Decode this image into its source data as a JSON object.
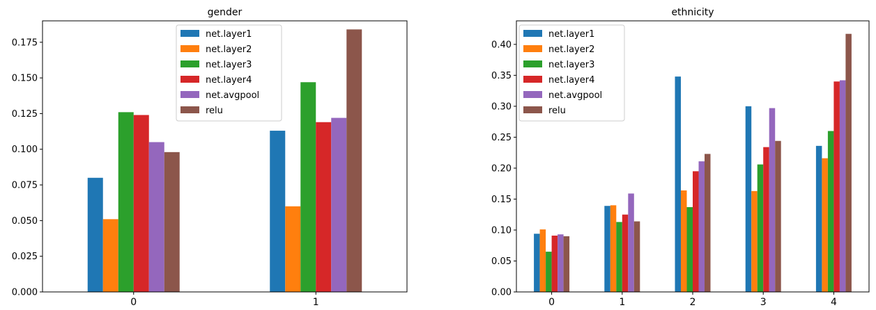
{
  "chart_data": [
    {
      "type": "bar",
      "title": "gender",
      "categories": [
        "0",
        "1"
      ],
      "series": [
        {
          "name": "net.layer1",
          "color": "#1f77b4",
          "values": [
            0.08,
            0.113
          ]
        },
        {
          "name": "net.layer2",
          "color": "#ff7f0e",
          "values": [
            0.051,
            0.06
          ]
        },
        {
          "name": "net.layer3",
          "color": "#2ca02c",
          "values": [
            0.126,
            0.147
          ]
        },
        {
          "name": "net.layer4",
          "color": "#d62728",
          "values": [
            0.124,
            0.119
          ]
        },
        {
          "name": "net.avgpool",
          "color": "#9467bd",
          "values": [
            0.105,
            0.122
          ]
        },
        {
          "name": "relu",
          "color": "#8c564b",
          "values": [
            0.098,
            0.184
          ]
        }
      ],
      "ylim": [
        0,
        0.19
      ],
      "yticks": [
        "0.000",
        "0.025",
        "0.050",
        "0.075",
        "0.100",
        "0.125",
        "0.150",
        "0.175"
      ],
      "ytick_values": [
        0,
        0.025,
        0.05,
        0.075,
        0.1,
        0.125,
        0.15,
        0.175
      ],
      "legend": "top-center",
      "grid": false
    },
    {
      "type": "bar",
      "title": "ethnicity",
      "categories": [
        "0",
        "1",
        "2",
        "3",
        "4"
      ],
      "series": [
        {
          "name": "net.layer1",
          "color": "#1f77b4",
          "values": [
            0.094,
            0.139,
            0.348,
            0.3,
            0.236
          ]
        },
        {
          "name": "net.layer2",
          "color": "#ff7f0e",
          "values": [
            0.101,
            0.14,
            0.164,
            0.163,
            0.216
          ]
        },
        {
          "name": "net.layer3",
          "color": "#2ca02c",
          "values": [
            0.065,
            0.113,
            0.137,
            0.206,
            0.26
          ]
        },
        {
          "name": "net.layer4",
          "color": "#d62728",
          "values": [
            0.091,
            0.125,
            0.195,
            0.234,
            0.34
          ]
        },
        {
          "name": "net.avgpool",
          "color": "#9467bd",
          "values": [
            0.093,
            0.159,
            0.211,
            0.297,
            0.342
          ]
        },
        {
          "name": "relu",
          "color": "#8c564b",
          "values": [
            0.09,
            0.114,
            0.223,
            0.244,
            0.417
          ]
        }
      ],
      "ylim": [
        0,
        0.438
      ],
      "yticks": [
        "0.00",
        "0.05",
        "0.10",
        "0.15",
        "0.20",
        "0.25",
        "0.30",
        "0.35",
        "0.40"
      ],
      "ytick_values": [
        0,
        0.05,
        0.1,
        0.15,
        0.2,
        0.25,
        0.3,
        0.35,
        0.4
      ],
      "legend": "top-left",
      "grid": false
    }
  ]
}
